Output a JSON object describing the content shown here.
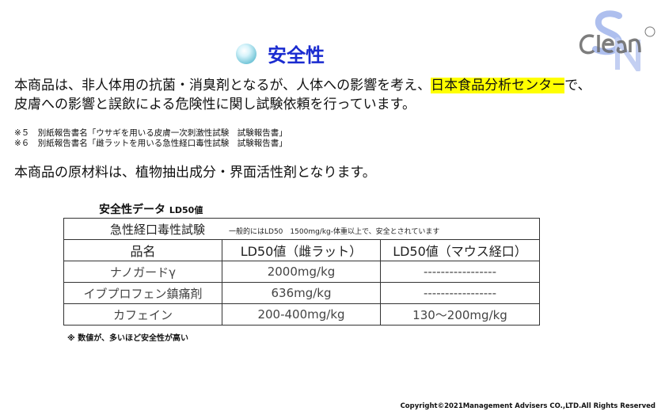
{
  "title": {
    "text": "安全性",
    "icon": "orb-bullet-icon"
  },
  "logo": {
    "text": "SN Clean"
  },
  "intro": {
    "line1_pre": "本商品は、非人体用の抗菌・消臭剤となるが、人体への影響を考え、",
    "line1_highlight": "日本食品分析センター",
    "line1_post": "で、",
    "line2": "皮膚への影響と誤飲による危険性に関し試験依頼を行っています。",
    "highlight_color": "#ffff00"
  },
  "notes": [
    "※５　別紙報告書名「ウサギを用いる皮膚一次刺激性試験　試験報告書」",
    "※６　別紙報告書名「雌ラットを用いる急性経口毒性試験　試験報告書」"
  ],
  "materials": "本商品の原材料は、植物抽出成分・界面活性剤となります。",
  "table": {
    "caption": "安全性データ",
    "caption_sub": "LD50値",
    "test_name": "急性経口毒性試験",
    "test_note": "一般的にはLD50　1500mg/kg-体重以上で、安全とされています",
    "columns": [
      "品名",
      "LD50値（雌ラット）",
      "LD50値（マウス経口）"
    ],
    "rows": [
      [
        "ナノガードγ",
        "2000mg/kg",
        "-----------------"
      ],
      [
        "イブプロフェン鎮痛剤",
        "636mg/kg",
        "-----------------"
      ],
      [
        "カフェイン",
        "200-400mg/kg",
        "130～200mg/kg"
      ]
    ],
    "footnote": "※ 数値が、多いほど安全性が高い"
  },
  "copyright": "Copyright©2021Management Advisers CO.,LTD.All Rights Reserved",
  "colors": {
    "title": "#1a2bd0"
  }
}
